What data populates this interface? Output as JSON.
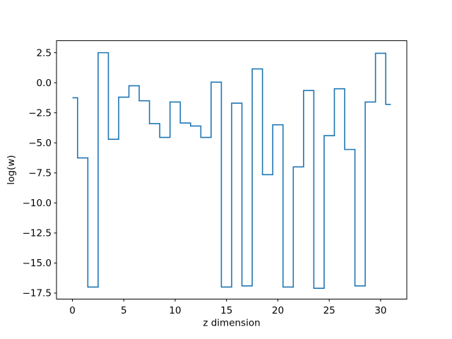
{
  "chart_data": {
    "type": "line",
    "subtype": "step-mid",
    "title": "",
    "xlabel": "z dimension",
    "ylabel": "log(w)",
    "x": [
      0,
      1,
      2,
      3,
      4,
      5,
      6,
      7,
      8,
      9,
      10,
      11,
      12,
      13,
      14,
      15,
      16,
      17,
      18,
      19,
      20,
      21,
      22,
      23,
      24,
      25,
      26,
      27,
      28,
      29,
      30,
      31
    ],
    "values": [
      -1.25,
      -6.25,
      -17.0,
      2.5,
      -4.7,
      -1.2,
      -0.25,
      -1.5,
      -3.4,
      -4.55,
      -1.6,
      -3.35,
      -3.6,
      -4.55,
      0.05,
      -17.0,
      -1.7,
      -16.9,
      1.15,
      -7.65,
      -3.5,
      -17.0,
      -7.0,
      -0.65,
      -17.1,
      -4.4,
      -0.5,
      -5.55,
      -16.9,
      -1.6,
      2.45,
      -1.8
    ],
    "xticks": [
      0,
      5,
      10,
      15,
      20,
      25,
      30
    ],
    "xtick_labels": [
      "0",
      "5",
      "10",
      "15",
      "20",
      "25",
      "30"
    ],
    "yticks": [
      2.5,
      0.0,
      -2.5,
      -5.0,
      -7.5,
      -10.0,
      -12.5,
      -15.0,
      -17.5
    ],
    "ytick_labels": [
      "2.5",
      "0.0",
      "−2.5",
      "−5.0",
      "−7.5",
      "−10.0",
      "−12.5",
      "−15.0",
      "−17.5"
    ],
    "xlim": [
      -1.55,
      32.55
    ],
    "ylim": [
      -18.0,
      3.5
    ],
    "grid": false,
    "legend_position": "none",
    "line_color": "#1f77b4",
    "axes_color": "#000000",
    "background_color": "#ffffff"
  }
}
